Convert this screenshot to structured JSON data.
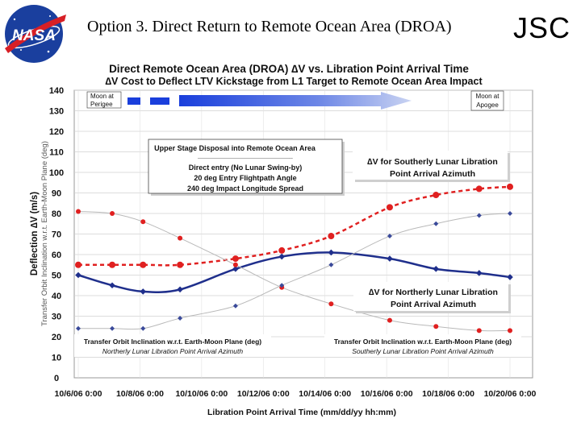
{
  "slide": {
    "title": "Option 3. Direct Return to Remote Ocean Area (DROA)",
    "org": "JSC",
    "logo_text": "NASA",
    "colors": {
      "logo_blue": "#1a3f9e",
      "logo_red": "#d71f26"
    }
  },
  "chart_data": {
    "type": "line",
    "title": "Direct Remote Ocean Area (DROA) ∆V vs. Libration Point Arrival Time",
    "subtitle": "∆V Cost to Deflect LTV Kickstage from L1 Target to Remote Ocean Area Impact",
    "xlabel": "Libration Point Arrival Time  (mm/dd/yy     hh:mm)",
    "ylabel": "Deflection ∆V  (m/s)",
    "ylabel2": "Transfer Orbit Inclination w.r.t. Earth-Moon Plane (deg)",
    "ylim": [
      0,
      140
    ],
    "yticks": [
      0,
      10,
      20,
      30,
      40,
      50,
      60,
      70,
      80,
      90,
      100,
      110,
      120,
      130,
      140
    ],
    "xlim": [
      0,
      14
    ],
    "xticks": [
      0,
      2,
      4,
      6,
      8,
      10,
      12,
      14
    ],
    "xtick_labels": [
      "10/6/06 0:00",
      "10/8/06 0:00",
      "10/10/06 0:00",
      "10/12/06 0:00",
      "10/14/06 0:00",
      "10/16/06 0:00",
      "10/18/06 0:00",
      "10/20/06 0:00"
    ],
    "grid": true,
    "series": [
      {
        "name": "∆V for Southerly Lunar Libration Point Arrival Azimuth",
        "style": "dashed",
        "marker": "circle",
        "color": "#e02020",
        "x": [
          0,
          1.1,
          2.1,
          3.3,
          5.1,
          6.6,
          8.2,
          10.1,
          11.6,
          13.0,
          14.0
        ],
        "y": [
          55,
          55,
          55,
          55,
          58,
          62,
          69,
          83,
          89,
          92,
          93
        ]
      },
      {
        "name": "∆V for Northerly Lunar Libration Point Arrival Azimuth",
        "style": "solid",
        "marker": "diamond",
        "color": "#1f2f8c",
        "x": [
          0,
          1.1,
          2.1,
          3.3,
          5.1,
          6.6,
          8.2,
          10.1,
          11.6,
          13.0,
          14.0
        ],
        "y": [
          50,
          45,
          42,
          43,
          53,
          59,
          61,
          58,
          53,
          51,
          49
        ]
      },
      {
        "name": "Transfer Orbit Inclination w.r.t. Earth-Moon Plane (deg) Northerly Lunar Libration Point Arrival Azimuth",
        "style": "thin",
        "marker": "circle",
        "color": "#e02020",
        "x": [
          0,
          1.1,
          2.1,
          3.3,
          5.1,
          6.6,
          8.2,
          10.1,
          11.6,
          13.0,
          14.0
        ],
        "y": [
          81,
          80,
          76,
          68,
          55,
          44,
          36,
          28,
          25,
          23,
          23
        ]
      },
      {
        "name": "Transfer Orbit Inclination w.r.t. Earth-Moon Plane (deg) Southerly Lunar Libration Point Arrival Azimuth",
        "style": "thin",
        "marker": "diamond",
        "color": "#3a4a9a",
        "x": [
          0,
          1.1,
          2.1,
          3.3,
          5.1,
          6.6,
          8.2,
          10.1,
          11.6,
          13.0,
          14.0
        ],
        "y": [
          24,
          24,
          24,
          29,
          35,
          45,
          55,
          69,
          75,
          79,
          80
        ]
      }
    ],
    "annotations": {
      "moon_perigee": [
        "Moon at",
        "Perigee"
      ],
      "moon_apogee": [
        "Moon at",
        "Apogee"
      ],
      "disposal_box": [
        "Upper Stage Disposal into Remote Ocean Area",
        "-----------------------------------------------------------",
        "Direct entry (No Lunar Swing-by)",
        "20 deg Entry Flightpath Angle",
        "240 deg Impact Longitude Spread"
      ],
      "south_dv_label": [
        "∆V for Southerly Lunar Libration",
        "Point Arrival Azimuth"
      ],
      "north_dv_label": [
        "∆V for Northerly Lunar Libration",
        "Point Arrival Azimuth"
      ],
      "incl_north_label": [
        "Transfer Orbit Inclination w.r.t. Earth-Moon Plane (deg)",
        "Northerly Lunar Libration Point Arrival Azimuth"
      ],
      "incl_south_label": [
        "Transfer Orbit Inclination w.r.t. Earth-Moon Plane (deg)",
        "Southerly Lunar Libration Point Arrival Azimuth"
      ]
    }
  }
}
